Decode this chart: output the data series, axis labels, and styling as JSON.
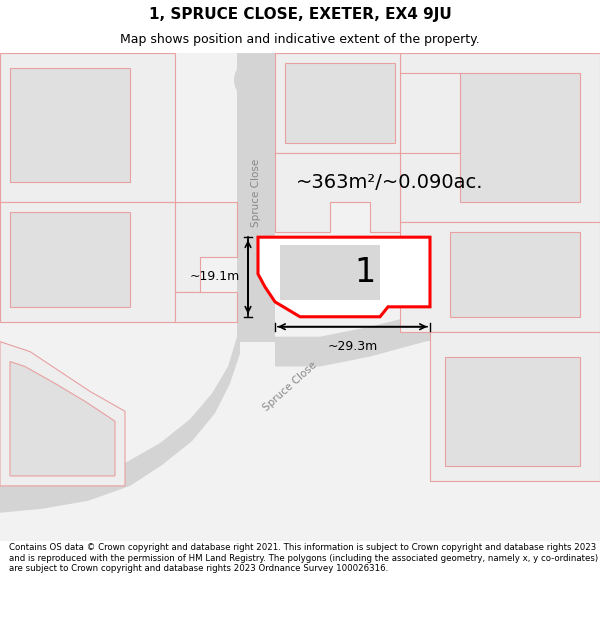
{
  "title_line1": "1, SPRUCE CLOSE, EXETER, EX4 9JU",
  "title_line2": "Map shows position and indicative extent of the property.",
  "footer": "Contains OS data © Crown copyright and database right 2021. This information is subject to Crown copyright and database rights 2023 and is reproduced with the permission of HM Land Registry. The polygons (including the associated geometry, namely x, y co-ordinates) are subject to Crown copyright and database rights 2023 Ordnance Survey 100026316.",
  "area_label": "~363m²/~0.090ac.",
  "plot_number": "1",
  "dim_width": "~29.3m",
  "dim_height": "~19.1m",
  "map_bg": "#f2f2f2",
  "road_color": "#d4d4d4",
  "plot_fill": "#ffffff",
  "plot_edge_color": "#ff0000",
  "other_plots_edge": "#e8a0a0",
  "title_fontsize": 11,
  "subtitle_fontsize": 9,
  "footer_fontsize": 6.2
}
